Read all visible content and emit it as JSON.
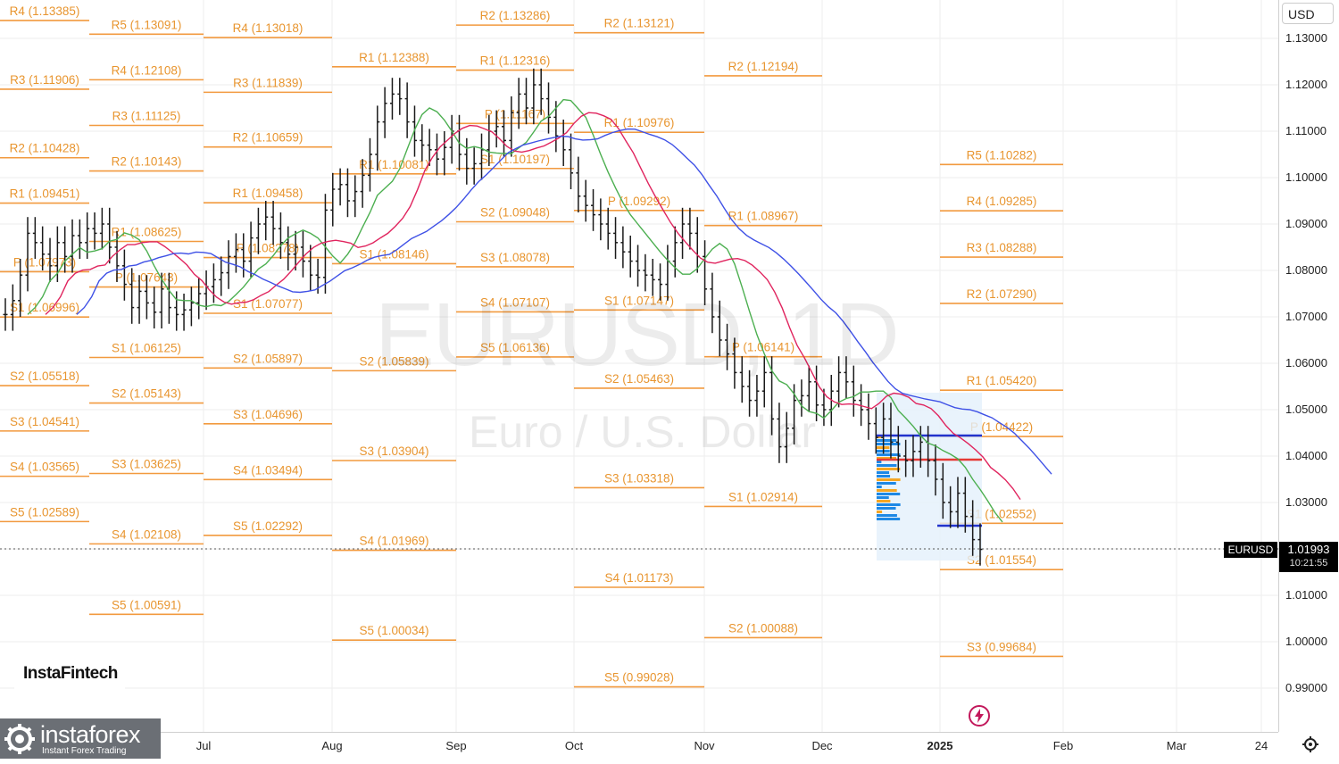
{
  "app": {
    "currency": "USD",
    "symbol": "EURUSD",
    "watermark_symbol": "EURUSD, 1D",
    "watermark_name": "Euro / U.S. Dollar",
    "last_price": "1.01993",
    "countdown": "10:21:55",
    "brand_panel": "InstaFintech",
    "logo_name": "instaforex",
    "logo_tagline": "Instant Forex Trading",
    "settings_icon": "gear-icon",
    "bolt_icon": "lightning-icon"
  },
  "colors": {
    "pivot": "#f29a3f",
    "label": "#e8952f",
    "candle": "#1a1a1a",
    "ma_fast": "#4caf50",
    "ma_mid": "#e0245e",
    "ma_slow": "#3f51e6",
    "vp": "#1e88e5",
    "vp_poc": "#f5a623"
  },
  "chart_data": {
    "type": "candlestick",
    "ylim": [
      0.985,
      1.1345
    ],
    "y_ticks": [
      "1.13000",
      "1.12000",
      "1.11000",
      "1.10000",
      "1.09000",
      "1.08000",
      "1.07000",
      "1.06000",
      "1.05000",
      "1.04000",
      "1.03000",
      "1.02000",
      "1.01000",
      "1.00000",
      "0.99000"
    ],
    "x_labels": [
      "Jul",
      "Aug",
      "Sep",
      "Oct",
      "Nov",
      "Dec",
      "2025",
      "Feb",
      "Mar",
      "24"
    ],
    "pivot_blocks": [
      {
        "labels": [
          [
            "R4",
            "1.13385"
          ],
          [
            "R3",
            "1.11906"
          ],
          [
            "R2",
            "1.10428"
          ],
          [
            "R1",
            "1.09451"
          ],
          [
            "P",
            "1.07973"
          ],
          [
            "S1",
            "1.06996"
          ],
          [
            "S2",
            "1.05518"
          ],
          [
            "S3",
            "1.04541"
          ],
          [
            "S4",
            "1.03565"
          ],
          [
            "S5",
            "1.02589"
          ]
        ]
      },
      {
        "labels": [
          [
            "R5",
            "1.13091"
          ],
          [
            "R4",
            "1.12108"
          ],
          [
            "R3",
            "1.11125"
          ],
          [
            "R2",
            "1.10143"
          ],
          [
            "R1",
            "1.08625"
          ],
          [
            "P",
            "1.07643"
          ],
          [
            "S1",
            "1.06125"
          ],
          [
            "S2",
            "1.05143"
          ],
          [
            "S3",
            "1.03625"
          ],
          [
            "S4",
            "1.02108"
          ],
          [
            "S5",
            "1.00591"
          ]
        ]
      },
      {
        "labels": [
          [
            "R4",
            "1.13018"
          ],
          [
            "R3",
            "1.11839"
          ],
          [
            "R2",
            "1.10659"
          ],
          [
            "R1",
            "1.09458"
          ],
          [
            "P",
            "1.08278"
          ],
          [
            "S1",
            "1.07077"
          ],
          [
            "S2",
            "1.05897"
          ],
          [
            "S3",
            "1.04696"
          ],
          [
            "S4",
            "1.03494"
          ],
          [
            "S5",
            "1.02292"
          ]
        ]
      },
      {
        "labels": [
          [
            "R1",
            "1.12388"
          ],
          [
            "R1",
            "1.10081"
          ],
          [
            "S1",
            "1.08146"
          ],
          [
            "S2",
            "1.05839"
          ],
          [
            "S3",
            "1.03904"
          ],
          [
            "S4",
            "1.01969"
          ],
          [
            "S5",
            "1.00034"
          ]
        ]
      },
      {
        "labels": [
          [
            "R2",
            "1.13286"
          ],
          [
            "R1",
            "1.12316"
          ],
          [
            "P",
            "1.11167"
          ],
          [
            "S1",
            "1.10197"
          ],
          [
            "S2",
            "1.09048"
          ],
          [
            "S3",
            "1.08078"
          ],
          [
            "S4",
            "1.07107"
          ],
          [
            "S5",
            "1.06136"
          ]
        ]
      },
      {
        "labels": [
          [
            "R2",
            "1.13121"
          ],
          [
            "R1",
            "1.10976"
          ],
          [
            "P",
            "1.09292"
          ],
          [
            "S1",
            "1.07147"
          ],
          [
            "S2",
            "1.05463"
          ],
          [
            "S3",
            "1.03318"
          ],
          [
            "S4",
            "1.01173"
          ],
          [
            "S5",
            "0.99028"
          ]
        ]
      },
      {
        "labels": [
          [
            "R2",
            "1.12194"
          ],
          [
            "R1",
            "1.08967"
          ],
          [
            "P",
            "1.06141"
          ],
          [
            "S1",
            "1.02914"
          ],
          [
            "S2",
            "1.00088"
          ]
        ]
      },
      {
        "labels": [
          [
            "R5",
            "1.10282"
          ],
          [
            "R4",
            "1.09285"
          ],
          [
            "R3",
            "1.08288"
          ],
          [
            "R2",
            "1.07290"
          ],
          [
            "R1",
            "1.05420"
          ],
          [
            "P",
            "1.04422"
          ],
          [
            "S1",
            "1.02552"
          ],
          [
            "S2",
            "1.01554"
          ],
          [
            "S3",
            "0.99684"
          ]
        ]
      }
    ],
    "candles_close": [
      1.0705,
      1.0735,
      1.079,
      1.088,
      1.086,
      1.0835,
      1.081,
      1.086,
      1.083,
      1.0875,
      1.086,
      1.089,
      1.088,
      1.09,
      1.085,
      1.081,
      1.077,
      1.072,
      1.0755,
      1.073,
      1.071,
      1.076,
      1.072,
      1.0705,
      1.0715,
      1.073,
      1.075,
      1.0765,
      1.078,
      1.0795,
      1.083,
      1.0845,
      1.082,
      1.087,
      1.09,
      1.0915,
      1.089,
      1.086,
      1.0835,
      1.085,
      1.082,
      1.079,
      1.0785,
      1.093,
      1.0975,
      1.0985,
      1.095,
      1.097,
      1.1005,
      1.105,
      1.112,
      1.116,
      1.118,
      1.117,
      1.112,
      1.108,
      1.107,
      1.106,
      1.104,
      1.1065,
      1.11,
      1.105,
      1.102,
      1.103,
      1.106,
      1.11,
      1.111,
      1.108,
      1.114,
      1.118,
      1.115,
      1.12,
      1.117,
      1.113,
      1.109,
      1.106,
      1.101,
      1.096,
      1.094,
      1.092,
      1.09,
      1.088,
      1.086,
      1.084,
      1.082,
      1.08,
      1.079,
      1.078,
      1.077,
      1.082,
      1.086,
      1.09,
      1.088,
      1.083,
      1.076,
      1.07,
      1.065,
      1.062,
      1.058,
      1.055,
      1.052,
      1.054,
      1.058,
      1.048,
      1.042,
      1.046,
      1.052,
      1.053,
      1.056,
      1.051,
      1.05,
      1.054,
      1.058,
      1.056,
      1.052,
      1.05,
      1.047,
      1.044,
      1.048,
      1.043,
      1.04,
      1.039,
      1.041,
      1.043,
      1.039,
      1.035,
      1.03,
      1.028,
      1.032,
      1.027,
      1.022,
      1.0199
    ]
  }
}
